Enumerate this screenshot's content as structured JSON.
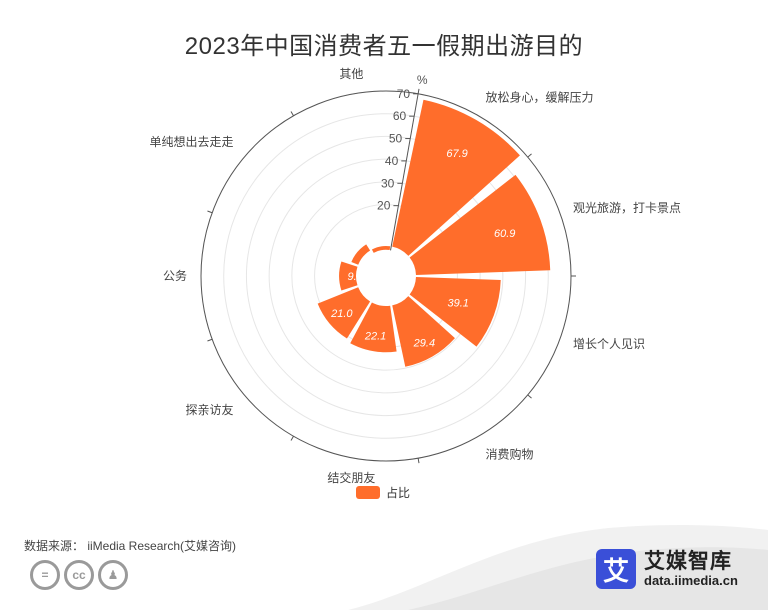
{
  "chart_data": {
    "type": "bar",
    "coordinate": "polar",
    "title": "2023年中国消费者五一假期出游目的",
    "unit": "%",
    "categories": [
      "放松身心，缓解压力",
      "观光旅游，打卡景点",
      "增长个人见识",
      "消费购物",
      "结交朋友",
      "探亲访友",
      "公务",
      "单纯想出去走走",
      "其他"
    ],
    "series": [
      {
        "name": "占比",
        "values": [
          67.9,
          60.9,
          39.1,
          29.4,
          22.1,
          21.0,
          9.2,
          5.0,
          0.1
        ]
      }
    ],
    "radial_ticks": [
      20,
      30,
      40,
      50,
      60,
      70
    ],
    "rlim": [
      0,
      70
    ],
    "grid": true,
    "legend": "bottom",
    "color": "#ff6d2b"
  },
  "source": "数据来源： iiMedia Research(艾媒咨询)",
  "license_icons": [
    "equals-icon",
    "cc-icon",
    "person-icon"
  ],
  "license_glyphs": [
    "=",
    "cc",
    "♟"
  ],
  "brand": {
    "logo_char": "艾",
    "name": "艾媒智库",
    "url": "data.iimedia.cn",
    "color": "#3a4fd8"
  }
}
